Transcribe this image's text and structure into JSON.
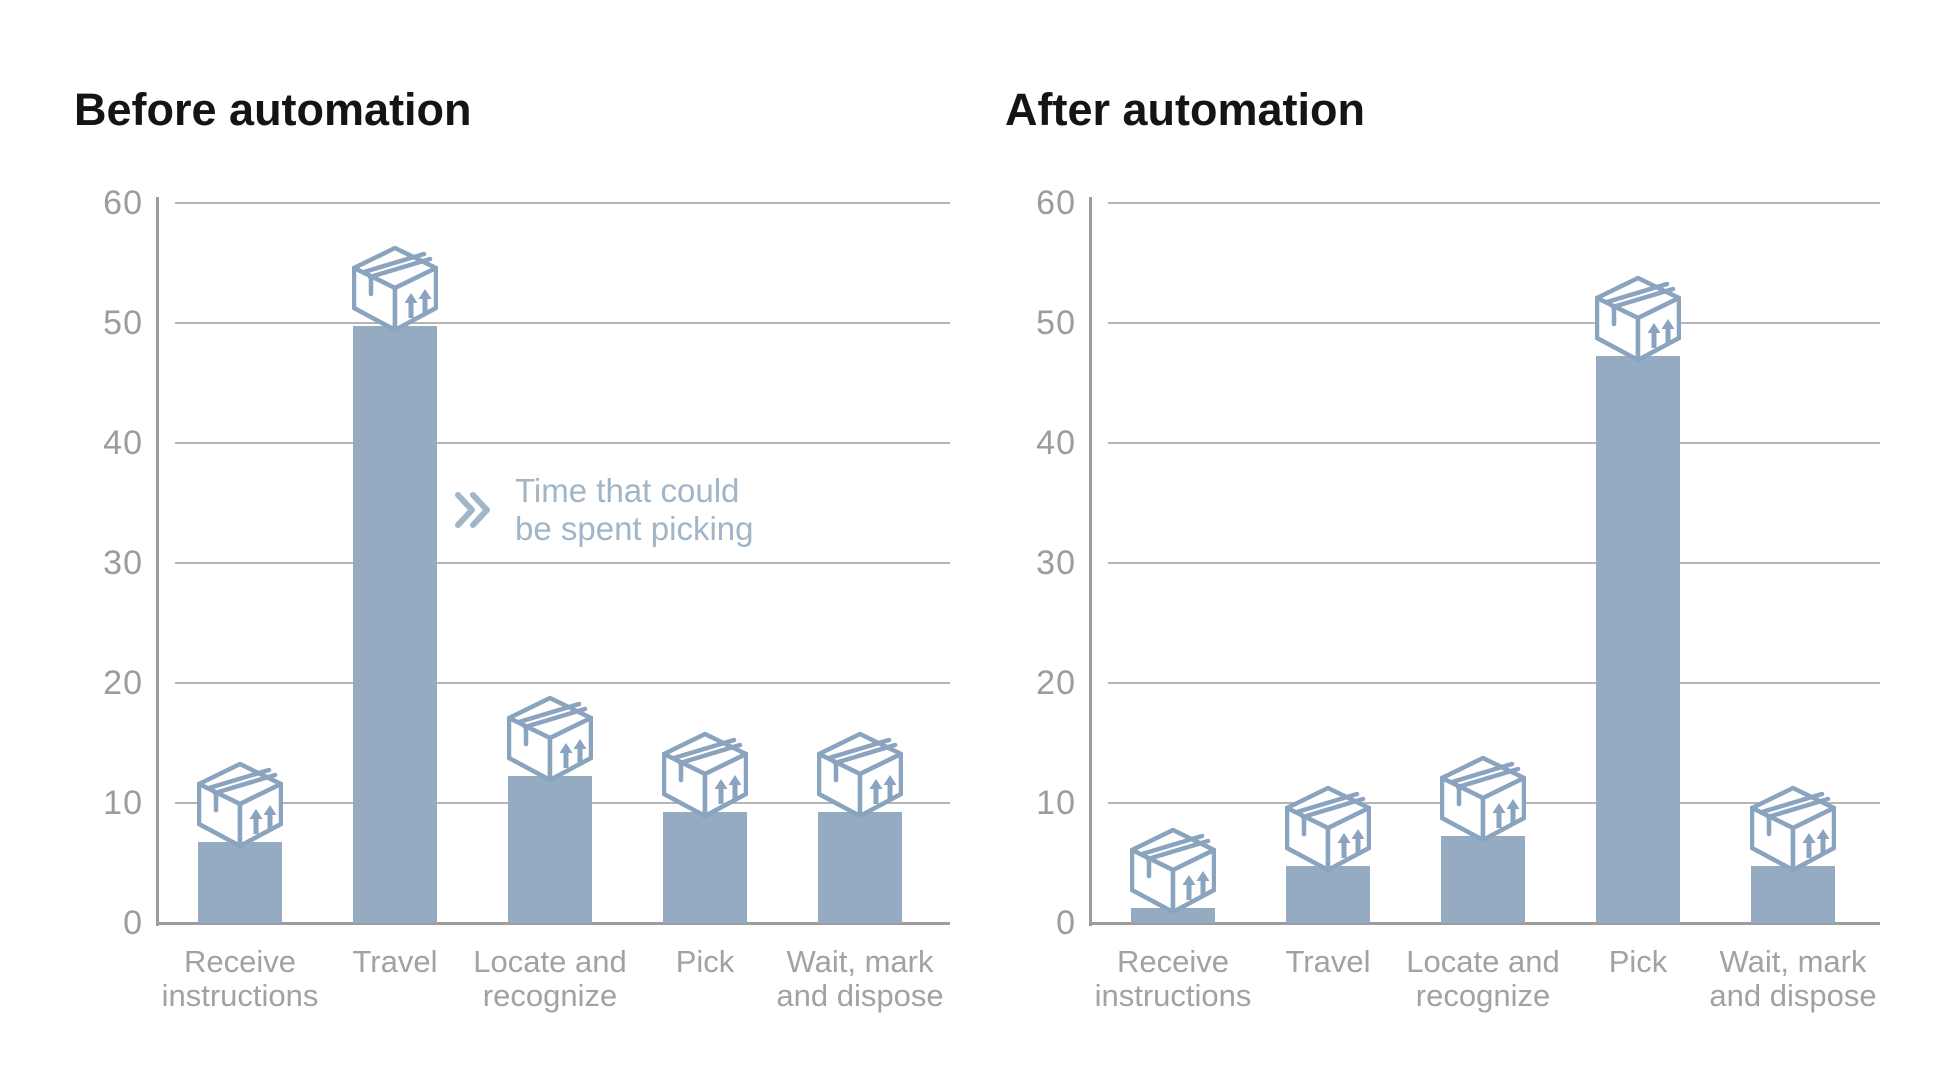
{
  "chart_data": [
    {
      "type": "bar",
      "title": "Before automation",
      "categories": [
        "Receive instructions",
        "Travel",
        "Locate and recognize",
        "Pick",
        "Wait, mark and dispose"
      ],
      "category_lines": [
        [
          "Receive",
          "instructions"
        ],
        [
          "Travel"
        ],
        [
          "Locate and",
          "recognize"
        ],
        [
          "Pick"
        ],
        [
          "Wait, mark",
          "and dispose"
        ]
      ],
      "values": [
        13.5,
        56.5,
        19,
        16,
        16
      ],
      "ylim": [
        0,
        60
      ],
      "yticks": [
        0,
        10,
        20,
        30,
        40,
        50,
        60
      ],
      "grid": true,
      "legend": "none",
      "bar_icon": "cardboard-box",
      "annotation": {
        "icon": "double-chevron-right",
        "line1": "Time that could",
        "line2": "be spent picking"
      }
    },
    {
      "type": "bar",
      "title": "After automation",
      "categories": [
        "Receive instructions",
        "Travel",
        "Locate and recognize",
        "Pick",
        "Wait, mark and dispose"
      ],
      "category_lines": [
        [
          "Receive",
          "instructions"
        ],
        [
          "Travel"
        ],
        [
          "Locate and",
          "recognize"
        ],
        [
          "Pick"
        ],
        [
          "Wait, mark",
          "and dispose"
        ]
      ],
      "values": [
        8,
        11.5,
        14,
        54,
        11.5
      ],
      "ylim": [
        0,
        60
      ],
      "yticks": [
        0,
        10,
        20,
        30,
        40,
        50,
        60
      ],
      "grid": true,
      "legend": "none",
      "bar_icon": "cardboard-box"
    }
  ],
  "style": {
    "background": "#ffffff",
    "title_color": "#141414",
    "bar_color": "#95abc2",
    "box_outline_color": "#8aa3bf",
    "grid_color": "#b5b5b5",
    "axis_color": "#9d9d9d",
    "tick_label_color": "#9c9c9c",
    "category_label_color": "#a2a2a2",
    "annotation_color": "#a1b5c8"
  }
}
